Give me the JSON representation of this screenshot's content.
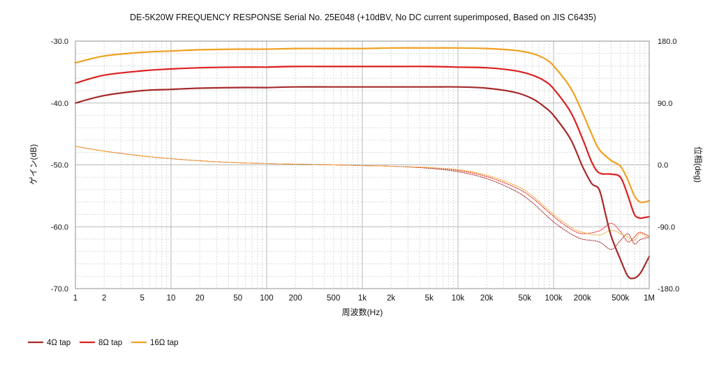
{
  "chart_data": {
    "type": "line",
    "title": "DE-5K20W FREQUENCY RESPONSE Serial No. 25E048 (+10dBV,  No DC current superimposed,  Based on JIS C6435)",
    "xlabel": "周波数(Hz)",
    "ylabel": "ゲイン(dB)",
    "y2label": "位相(deg)",
    "x_scale": "log",
    "xlim": [
      1,
      1000000
    ],
    "ylim": [
      -70,
      -30
    ],
    "y2lim": [
      -180,
      180
    ],
    "grid": true,
    "legend_position": "bottom-left",
    "x_ticks": [
      {
        "v": 1,
        "label": "1"
      },
      {
        "v": 2,
        "label": "2"
      },
      {
        "v": 5,
        "label": "5"
      },
      {
        "v": 10,
        "label": "10"
      },
      {
        "v": 20,
        "label": "20"
      },
      {
        "v": 50,
        "label": "50"
      },
      {
        "v": 100,
        "label": "100"
      },
      {
        "v": 200,
        "label": "200"
      },
      {
        "v": 500,
        "label": "500"
      },
      {
        "v": 1000,
        "label": "1k"
      },
      {
        "v": 2000,
        "label": "2k"
      },
      {
        "v": 5000,
        "label": "5k"
      },
      {
        "v": 10000,
        "label": "10k"
      },
      {
        "v": 20000,
        "label": "20k"
      },
      {
        "v": 50000,
        "label": "50k"
      },
      {
        "v": 100000,
        "label": "100k"
      },
      {
        "v": 200000,
        "label": "200k"
      },
      {
        "v": 500000,
        "label": "500k"
      },
      {
        "v": 1000000,
        "label": "1M"
      }
    ],
    "y_ticks": [
      {
        "v": -30,
        "label": "-30.0"
      },
      {
        "v": -40,
        "label": "-40.0"
      },
      {
        "v": -50,
        "label": "-50.0"
      },
      {
        "v": -60,
        "label": "-60.0"
      },
      {
        "v": -70,
        "label": "-70.0"
      }
    ],
    "y2_ticks": [
      {
        "v": 180,
        "label": "180.0"
      },
      {
        "v": 90,
        "label": "90.0"
      },
      {
        "v": 0,
        "label": "0.0"
      },
      {
        "v": -90,
        "label": "-90.0"
      },
      {
        "v": -180,
        "label": "-180.0"
      }
    ],
    "series": [
      {
        "name": "4Ω tap",
        "color": "#a52a2a",
        "axis": "gain",
        "x": [
          1,
          2,
          5,
          10,
          20,
          50,
          100,
          200,
          500,
          1000,
          2000,
          5000,
          10000,
          20000,
          40000,
          60000,
          80000,
          100000,
          150000,
          200000,
          250000,
          300000,
          350000,
          400000,
          500000,
          600000,
          700000,
          800000,
          900000,
          1000000
        ],
        "values": [
          -40.0,
          -38.8,
          -38.0,
          -37.8,
          -37.6,
          -37.5,
          -37.5,
          -37.4,
          -37.4,
          -37.4,
          -37.4,
          -37.4,
          -37.4,
          -37.6,
          -38.3,
          -39.3,
          -40.6,
          -42.0,
          -45.8,
          -50.2,
          -53.0,
          -54.0,
          -58.0,
          -61.5,
          -65.3,
          -68.0,
          -68.3,
          -67.6,
          -66.2,
          -64.8
        ]
      },
      {
        "name": "8Ω tap",
        "color": "#dd1f1f",
        "axis": "gain",
        "x": [
          1,
          2,
          5,
          10,
          20,
          50,
          100,
          200,
          500,
          1000,
          2000,
          5000,
          10000,
          20000,
          40000,
          60000,
          80000,
          100000,
          150000,
          200000,
          250000,
          300000,
          400000,
          500000,
          600000,
          700000,
          800000,
          900000,
          1000000
        ],
        "values": [
          -36.8,
          -35.5,
          -34.8,
          -34.5,
          -34.3,
          -34.2,
          -34.2,
          -34.1,
          -34.1,
          -34.1,
          -34.1,
          -34.1,
          -34.2,
          -34.3,
          -34.8,
          -35.5,
          -36.4,
          -37.7,
          -41.4,
          -45.7,
          -49.5,
          -51.3,
          -51.5,
          -52.0,
          -55.0,
          -58.0,
          -58.6,
          -58.5,
          -58.4
        ]
      },
      {
        "name": "16Ω tap",
        "color": "#f0a020",
        "axis": "gain",
        "x": [
          1,
          2,
          5,
          10,
          20,
          50,
          100,
          200,
          500,
          1000,
          2000,
          5000,
          10000,
          20000,
          40000,
          60000,
          80000,
          100000,
          150000,
          200000,
          250000,
          300000,
          400000,
          500000,
          600000,
          700000,
          800000,
          900000,
          1000000
        ],
        "values": [
          -33.5,
          -32.4,
          -31.8,
          -31.6,
          -31.4,
          -31.3,
          -31.3,
          -31.2,
          -31.2,
          -31.2,
          -31.1,
          -31.1,
          -31.1,
          -31.2,
          -31.5,
          -32.0,
          -32.8,
          -34.0,
          -37.5,
          -41.5,
          -45.0,
          -47.5,
          -49.3,
          -50.2,
          -52.5,
          -55.0,
          -56.0,
          -56.0,
          -55.8
        ]
      },
      {
        "name": "4Ω tap",
        "color": "#a52a2a",
        "axis": "phase",
        "x": [
          1,
          2,
          5,
          10,
          20,
          50,
          100,
          200,
          500,
          1000,
          2000,
          5000,
          10000,
          20000,
          40000,
          60000,
          100000,
          150000,
          200000,
          300000,
          400000,
          500000,
          600000,
          700000,
          800000,
          1000000
        ],
        "values": [
          27,
          20,
          13,
          9,
          6,
          3,
          2,
          1,
          0,
          -1,
          -2,
          -5,
          -10,
          -20,
          -38,
          -55,
          -83,
          -100,
          -108,
          -112,
          -123,
          -110,
          -100,
          -115,
          -109,
          -105
        ]
      },
      {
        "name": "8Ω tap",
        "color": "#dd1f1f",
        "axis": "phase",
        "x": [
          1,
          2,
          5,
          10,
          20,
          50,
          100,
          200,
          500,
          1000,
          2000,
          5000,
          10000,
          20000,
          40000,
          60000,
          100000,
          150000,
          200000,
          300000,
          400000,
          500000,
          600000,
          700000,
          800000,
          1000000
        ],
        "values": [
          27,
          20,
          13,
          9,
          6,
          3,
          2,
          1,
          0,
          -1,
          -2,
          -4,
          -8,
          -17,
          -33,
          -48,
          -75,
          -93,
          -100,
          -96,
          -85,
          -97,
          -112,
          -105,
          -98,
          -104
        ]
      },
      {
        "name": "16Ω tap",
        "color": "#f0a020",
        "axis": "phase",
        "x": [
          1,
          2,
          5,
          10,
          20,
          50,
          100,
          200,
          500,
          1000,
          2000,
          5000,
          10000,
          20000,
          40000,
          60000,
          100000,
          150000,
          200000,
          300000,
          400000,
          500000,
          600000,
          700000,
          800000,
          1000000
        ],
        "values": [
          27,
          20,
          13,
          9,
          6,
          3,
          2,
          1,
          0,
          -1,
          -2,
          -4,
          -7,
          -15,
          -30,
          -45,
          -72,
          -90,
          -98,
          -102,
          -95,
          -100,
          -105,
          -110,
          -100,
          -107
        ]
      }
    ],
    "legend": [
      {
        "label": "4Ω tap",
        "color": "#a52a2a"
      },
      {
        "label": "8Ω tap",
        "color": "#dd1f1f"
      },
      {
        "label": "16Ω tap",
        "color": "#f0a020"
      }
    ]
  }
}
